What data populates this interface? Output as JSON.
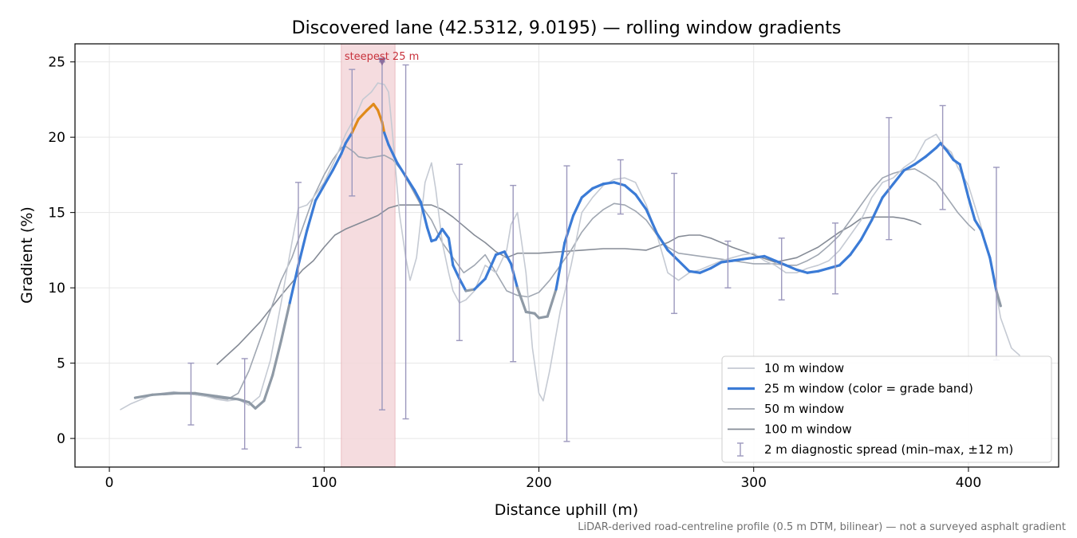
{
  "chart_data": {
    "type": "line",
    "title": "Discovered lane (42.5312, 9.0195) — rolling window gradients",
    "xlabel": "Distance uphill (m)",
    "ylabel": "Gradient (%)",
    "xlim": [
      -16,
      442
    ],
    "ylim": [
      -1.9,
      26.2
    ],
    "xticks": [
      0,
      100,
      200,
      300,
      400
    ],
    "yticks": [
      0,
      5,
      10,
      15,
      20,
      25
    ],
    "grid": true,
    "legend_position": "lower-right",
    "footnote": "LiDAR-derived road-centreline profile (0.5 m DTM, bilinear) — not a surveyed asphalt gradient",
    "highlight": {
      "x_range": [
        108,
        133
      ],
      "label": "steepest 25 m",
      "marker": [
        127,
        25
      ],
      "color": "#f4d7da"
    },
    "colors": {
      "w10": "#c5cad3",
      "w25": "#3b7bd6",
      "w25_steep": "#e08a1a",
      "w25_low": "#8f9aa6",
      "w50": "#a0a7b2",
      "w100": "#858b96",
      "diag": "#9c98bd",
      "highlight_label": "#c8323c"
    },
    "legend": [
      {
        "label": "10 m window",
        "key": "w10"
      },
      {
        "label": "25 m window (color = grade band)",
        "key": "w25"
      },
      {
        "label": "50 m window",
        "key": "w50"
      },
      {
        "label": "100 m window",
        "key": "w100"
      },
      {
        "label": "2 m diagnostic spread (min–max, ±12 m)",
        "key": "diag"
      }
    ],
    "series": [
      {
        "key": "w10",
        "name": "10 m window",
        "x": [
          5,
          10,
          15,
          20,
          25,
          30,
          35,
          40,
          45,
          50,
          55,
          60,
          65,
          70,
          75,
          80,
          85,
          88,
          92,
          95,
          100,
          105,
          110,
          115,
          118,
          122,
          125,
          128,
          130,
          132,
          135,
          138,
          140,
          143,
          147,
          150,
          152,
          155,
          158,
          160,
          163,
          166,
          170,
          175,
          180,
          185,
          187,
          190,
          194,
          197,
          200,
          202,
          205,
          210,
          215,
          220,
          225,
          230,
          235,
          240,
          245,
          250,
          255,
          260,
          265,
          270,
          275,
          280,
          285,
          290,
          295,
          300,
          305,
          310,
          315,
          320,
          325,
          330,
          335,
          340,
          345,
          350,
          355,
          360,
          365,
          370,
          375,
          380,
          385,
          388,
          392,
          395,
          400,
          405,
          410,
          415,
          420,
          424
        ],
        "y": [
          1.9,
          2.3,
          2.6,
          2.9,
          3.0,
          3.1,
          3.0,
          2.9,
          2.8,
          2.6,
          2.5,
          2.6,
          2.2,
          2.8,
          5.2,
          9.0,
          13.0,
          15.3,
          15.5,
          16.0,
          17.0,
          18.5,
          20.2,
          21.5,
          22.5,
          23.0,
          23.6,
          23.5,
          23.0,
          20.0,
          15.0,
          12.0,
          10.5,
          12.0,
          17.0,
          18.3,
          16.5,
          13.0,
          11.0,
          9.8,
          9.0,
          9.2,
          9.8,
          11.5,
          11.0,
          12.5,
          14.2,
          15.0,
          11.0,
          6.0,
          3.0,
          2.5,
          4.5,
          8.5,
          11.5,
          15.0,
          16.0,
          16.8,
          17.2,
          17.3,
          17.0,
          15.5,
          13.5,
          11.0,
          10.5,
          11.0,
          11.2,
          11.5,
          11.8,
          12.0,
          12.2,
          12.3,
          11.8,
          11.5,
          11.0,
          11.0,
          11.3,
          11.5,
          11.8,
          12.5,
          13.5,
          14.5,
          16.0,
          17.0,
          17.3,
          18.0,
          18.5,
          19.8,
          20.2,
          19.5,
          19.0,
          18.0,
          16.8,
          14.5,
          12.0,
          8.0,
          6.0,
          5.5
        ]
      },
      {
        "key": "w25",
        "name": "25 m window (color = grade band)",
        "x": [
          12,
          20,
          30,
          40,
          50,
          60,
          65,
          68,
          72,
          76,
          80,
          84,
          88,
          92,
          96,
          100,
          104,
          108,
          110,
          113,
          116,
          120,
          123,
          125,
          127,
          128,
          130,
          134,
          138,
          142,
          145,
          148,
          150,
          152,
          155,
          158,
          160,
          163,
          166,
          170,
          175,
          180,
          184,
          187,
          190,
          194,
          198,
          200,
          204,
          208,
          212,
          216,
          220,
          225,
          230,
          235,
          240,
          245,
          250,
          255,
          260,
          265,
          270,
          275,
          280,
          285,
          290,
          295,
          300,
          305,
          310,
          315,
          320,
          325,
          330,
          335,
          340,
          345,
          350,
          355,
          360,
          365,
          370,
          375,
          380,
          385,
          387,
          390,
          393,
          396,
          400,
          403,
          406,
          410,
          413,
          415
        ],
        "y": [
          2.7,
          2.9,
          3.0,
          3.0,
          2.8,
          2.6,
          2.4,
          2.0,
          2.5,
          4.2,
          6.5,
          9.0,
          11.5,
          13.8,
          15.8,
          16.8,
          17.8,
          18.9,
          19.6,
          20.3,
          21.2,
          21.8,
          22.2,
          21.8,
          21.0,
          20.3,
          19.5,
          18.3,
          17.4,
          16.5,
          15.7,
          14.0,
          13.1,
          13.2,
          13.9,
          13.3,
          11.5,
          10.6,
          9.8,
          9.9,
          10.6,
          12.2,
          12.4,
          11.6,
          10.0,
          8.4,
          8.3,
          8.0,
          8.1,
          9.9,
          13.0,
          14.8,
          16.0,
          16.6,
          16.9,
          17.0,
          16.8,
          16.2,
          15.2,
          13.6,
          12.5,
          11.8,
          11.1,
          11.0,
          11.3,
          11.7,
          11.8,
          11.9,
          12.0,
          12.1,
          11.8,
          11.5,
          11.2,
          11.0,
          11.1,
          11.3,
          11.5,
          12.2,
          13.2,
          14.5,
          16.0,
          16.9,
          17.8,
          18.2,
          18.7,
          19.3,
          19.6,
          19.1,
          18.5,
          18.2,
          16.0,
          14.5,
          13.8,
          12.0,
          9.8,
          8.8
        ]
      },
      {
        "key": "w50",
        "name": "50 m window",
        "x": [
          25,
          35,
          45,
          55,
          60,
          65,
          70,
          75,
          80,
          85,
          90,
          95,
          100,
          104,
          108,
          110,
          112,
          114,
          116,
          120,
          124,
          128,
          132,
          136,
          140,
          145,
          150,
          155,
          160,
          165,
          170,
          175,
          180,
          185,
          190,
          195,
          200,
          205,
          210,
          215,
          220,
          225,
          230,
          235,
          240,
          245,
          250,
          255,
          260,
          265,
          270,
          275,
          280,
          285,
          290,
          295,
          300,
          305,
          310,
          315,
          320,
          325,
          330,
          335,
          340,
          345,
          350,
          355,
          360,
          365,
          370,
          375,
          380,
          385,
          390,
          395,
          400,
          403
        ],
        "y": [
          2.9,
          3.0,
          2.8,
          2.6,
          3.0,
          4.5,
          6.5,
          8.5,
          10.5,
          12.0,
          14.0,
          16.0,
          17.5,
          18.5,
          19.3,
          19.4,
          19.2,
          19.0,
          18.7,
          18.6,
          18.7,
          18.8,
          18.5,
          17.8,
          16.8,
          15.5,
          14.5,
          13.0,
          12.0,
          11.0,
          11.5,
          12.2,
          11.0,
          9.8,
          9.5,
          9.4,
          9.7,
          10.5,
          11.5,
          12.5,
          13.7,
          14.6,
          15.2,
          15.6,
          15.5,
          15.1,
          14.5,
          13.5,
          12.7,
          12.3,
          12.2,
          12.1,
          12.0,
          11.9,
          11.8,
          11.7,
          11.6,
          11.6,
          11.6,
          11.5,
          11.5,
          11.8,
          12.2,
          12.8,
          13.5,
          14.5,
          15.5,
          16.5,
          17.3,
          17.6,
          17.8,
          17.9,
          17.5,
          17.0,
          16.0,
          15.0,
          14.2,
          13.8
        ]
      },
      {
        "key": "w100",
        "name": "100 m window",
        "x": [
          50,
          60,
          70,
          80,
          90,
          95,
          100,
          105,
          110,
          115,
          120,
          125,
          130,
          135,
          140,
          145,
          150,
          155,
          160,
          165,
          170,
          175,
          180,
          185,
          190,
          200,
          210,
          220,
          230,
          240,
          250,
          260,
          265,
          270,
          275,
          280,
          290,
          300,
          310,
          320,
          330,
          340,
          345,
          350,
          355,
          360,
          365,
          370,
          375,
          378
        ],
        "y": [
          4.9,
          6.2,
          7.7,
          9.5,
          11.2,
          11.8,
          12.7,
          13.5,
          13.9,
          14.2,
          14.5,
          14.8,
          15.3,
          15.5,
          15.5,
          15.5,
          15.5,
          15.2,
          14.7,
          14.1,
          13.5,
          13.0,
          12.4,
          12.0,
          12.3,
          12.3,
          12.4,
          12.5,
          12.6,
          12.6,
          12.5,
          13.0,
          13.4,
          13.5,
          13.5,
          13.3,
          12.7,
          12.2,
          11.7,
          12.0,
          12.7,
          13.7,
          14.1,
          14.6,
          14.7,
          14.7,
          14.7,
          14.6,
          14.4,
          14.2
        ]
      }
    ],
    "diagnostic_spread": [
      {
        "x": 38,
        "min": 0.9,
        "max": 5.0
      },
      {
        "x": 63,
        "min": -0.7,
        "max": 5.3
      },
      {
        "x": 88,
        "min": -0.6,
        "max": 17.0
      },
      {
        "x": 113,
        "min": 16.1,
        "max": 24.5
      },
      {
        "x": 127,
        "min": 1.9,
        "max": 25.0
      },
      {
        "x": 138,
        "min": 1.3,
        "max": 24.8
      },
      {
        "x": 163,
        "min": 6.5,
        "max": 18.2
      },
      {
        "x": 188,
        "min": 5.1,
        "max": 16.8
      },
      {
        "x": 213,
        "min": -0.2,
        "max": 18.1
      },
      {
        "x": 238,
        "min": 14.9,
        "max": 18.5
      },
      {
        "x": 263,
        "min": 8.3,
        "max": 17.6
      },
      {
        "x": 288,
        "min": 10.0,
        "max": 13.1
      },
      {
        "x": 313,
        "min": 9.2,
        "max": 13.3
      },
      {
        "x": 338,
        "min": 9.6,
        "max": 14.3
      },
      {
        "x": 363,
        "min": 13.2,
        "max": 21.3
      },
      {
        "x": 388,
        "min": 15.2,
        "max": 22.1
      },
      {
        "x": 413,
        "min": 5.2,
        "max": 18.0
      }
    ]
  }
}
